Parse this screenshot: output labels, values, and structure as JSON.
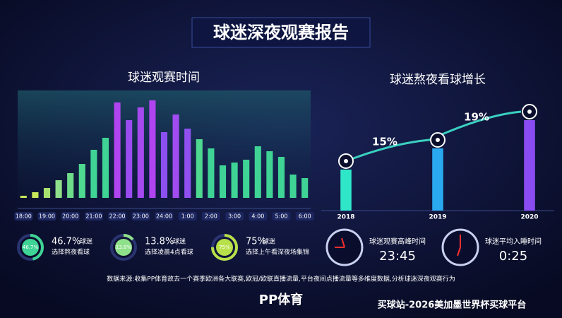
{
  "title": "球迷深夜观赛报告",
  "chart_data": [
    {
      "type": "bar",
      "title": "球迷观赛时间",
      "categories": [
        "18:00",
        null,
        "19:00",
        null,
        "20:00",
        null,
        "21:00",
        null,
        "22:00",
        null,
        "23:00",
        null,
        "24:00",
        null,
        "1:00",
        null,
        "2:00",
        null,
        "3:00",
        null,
        "4:00",
        null,
        "5:00",
        null,
        "6:00"
      ],
      "values": [
        3,
        8,
        14,
        25,
        35,
        48,
        68,
        85,
        135,
        110,
        128,
        138,
        93,
        118,
        98,
        83,
        70,
        46,
        50,
        54,
        73,
        66,
        58,
        33,
        28
      ],
      "colors": [
        "#c8e65a",
        "#c8e65a",
        "#a8e070",
        "#8fe08a",
        "#6fdc8a",
        "#4fd890",
        "#3fd495",
        "#3fd495",
        "#b044f0",
        "#9b4cf0",
        "#a64af0",
        "#b044f0",
        "#8c50f0",
        "#a04cf0",
        "#9050f0",
        "#4fd890",
        "#3fd495",
        "#3fd495",
        "#3fd495",
        "#3fd495",
        "#3fd495",
        "#3fd495",
        "#3fd495",
        "#3fd495",
        "#3fd495"
      ],
      "ylim": [
        0,
        150
      ]
    },
    {
      "type": "bar",
      "title": "球迷熬夜看球增长",
      "categories": [
        "2018",
        "2019",
        "2020"
      ],
      "values": [
        58,
        88,
        128
      ],
      "colors": [
        "#2fe6c8",
        "#2aa8f0",
        "#8a4cf0"
      ],
      "ylim": [
        0,
        150
      ],
      "annotations": [
        "15%",
        "19%"
      ]
    }
  ],
  "stats": [
    {
      "value": 46.7,
      "value_label": "46.7%",
      "line1": "球迷",
      "line2": "选择熬夜看球",
      "color": "#3fd495"
    },
    {
      "value": 13.8,
      "value_label": "13.8%",
      "line1": "球迷",
      "line2": "选择凌晨4点看球",
      "color": "#8fe08a"
    },
    {
      "value": 75,
      "value_label": "75%",
      "line1": "球迷",
      "line2": "选择上午看深夜场集锦",
      "color": "#b8e04a"
    }
  ],
  "clocks": [
    {
      "label": "球迷观赛高峰时间",
      "time": "23:45"
    },
    {
      "label": "球迷平均入睡时间",
      "time": "0:25"
    }
  ],
  "note": "数据来源:收集PP体育故去一个赛季欧洲各大联赛,欧冠/欧联直播流量,平台夜间点播流量等多维度数据,分析球迷深夜观赛行为",
  "logo": "PP体育",
  "watermark": "买球站-2026美加墨世界杯买球平台"
}
